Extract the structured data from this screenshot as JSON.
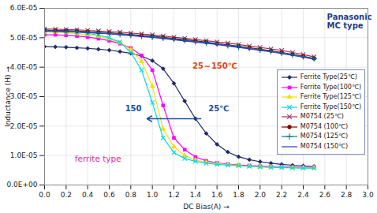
{
  "chart_data": {
    "type": "line",
    "x_label": "DC Bias(A)",
    "y_label": "Inductance (H)",
    "x": [
      0.0,
      0.1,
      0.2,
      0.3,
      0.4,
      0.5,
      0.6,
      0.7,
      0.8,
      0.9,
      1.0,
      1.1,
      1.2,
      1.3,
      1.4,
      1.5,
      1.6,
      1.7,
      1.8,
      1.9,
      2.0,
      2.1,
      2.2,
      2.3,
      2.4,
      2.5
    ],
    "series": [
      {
        "name": "Ferrite Type(25℃)",
        "color": "#1f2a6b",
        "marker": "diamond",
        "line_style": "solid",
        "values": [
          4.7e-05,
          4.69e-05,
          4.68e-05,
          4.66e-05,
          4.64e-05,
          4.61e-05,
          4.58e-05,
          4.53e-05,
          4.47e-05,
          4.38e-05,
          4.22e-05,
          3.95e-05,
          3.45e-05,
          2.85e-05,
          2.25e-05,
          1.75e-05,
          1.38e-05,
          1.12e-05,
          9.6e-06,
          8.6e-06,
          7.9e-06,
          7.4e-06,
          7e-06,
          6.7e-06,
          6.5e-06,
          6.3e-06
        ]
      },
      {
        "name": "Ferrite Type(100℃)",
        "color": "#ff00ff",
        "marker": "square",
        "line_style": "solid",
        "values": [
          5.1e-05,
          5.1e-05,
          5.08e-05,
          5.06e-05,
          5.02e-05,
          4.97e-05,
          4.9e-05,
          4.8e-05,
          4.65e-05,
          4.4e-05,
          3.9e-05,
          2.7e-05,
          1.6e-05,
          1.2e-05,
          9.5e-06,
          8.2e-06,
          7.5e-06,
          7.1e-06,
          6.8e-06,
          6.6e-06,
          6.4e-06,
          6.3e-06,
          6.2e-06,
          6.1e-06,
          6e-06,
          6e-06
        ]
      },
      {
        "name": "Ferrite Type(125℃)",
        "color": "#f0e000",
        "marker": "triangle",
        "line_style": "solid",
        "values": [
          5.2e-05,
          5.19e-05,
          5.17e-05,
          5.14e-05,
          5.1e-05,
          5.05e-05,
          4.96e-05,
          4.83e-05,
          4.6e-05,
          4.2e-05,
          3.35e-05,
          1.9e-05,
          1.3e-05,
          1e-05,
          8.5e-06,
          7.7e-06,
          7.2e-06,
          6.9e-06,
          6.6e-06,
          6.4e-06,
          6.2e-06,
          6.1e-06,
          6e-06,
          5.9e-06,
          5.8e-06,
          5.8e-06
        ]
      },
      {
        "name": "Ferrite Type(150℃)",
        "color": "#00d8f0",
        "marker": "x",
        "line_style": "solid",
        "values": [
          5.25e-05,
          5.24e-05,
          5.22e-05,
          5.19e-05,
          5.15e-05,
          5.09e-05,
          5e-05,
          4.85e-05,
          4.5e-05,
          3.9e-05,
          2.8e-05,
          1.6e-05,
          1.1e-05,
          9e-06,
          8e-06,
          7.4e-06,
          7e-06,
          6.7e-06,
          6.5e-06,
          6.3e-06,
          6.1e-06,
          6e-06,
          5.9e-06,
          5.8e-06,
          5.7e-06,
          5.7e-06
        ]
      },
      {
        "name": "M0754 (25℃)",
        "color": "#993366",
        "marker": "x",
        "line_style": "solid",
        "values": [
          5.3e-05,
          5.29e-05,
          5.28e-05,
          5.27e-05,
          5.25e-05,
          5.23e-05,
          5.21e-05,
          5.19e-05,
          5.16e-05,
          5.13e-05,
          5.1e-05,
          5.06e-05,
          5.02e-05,
          4.98e-05,
          4.94e-05,
          4.9e-05,
          4.86e-05,
          4.82e-05,
          4.77e-05,
          4.72e-05,
          4.67e-05,
          4.62e-05,
          4.57e-05,
          4.5e-05,
          4.43e-05,
          4.35e-05
        ]
      },
      {
        "name": "M0754 (100℃)",
        "color": "#800000",
        "marker": "circle",
        "line_style": "solid",
        "values": [
          5.26e-05,
          5.25e-05,
          5.24e-05,
          5.23e-05,
          5.21e-05,
          5.19e-05,
          5.17e-05,
          5.14e-05,
          5.11e-05,
          5.08e-05,
          5.05e-05,
          5.01e-05,
          4.97e-05,
          4.93e-05,
          4.89e-05,
          4.85e-05,
          4.8e-05,
          4.76e-05,
          4.71e-05,
          4.66e-05,
          4.61e-05,
          4.56e-05,
          4.5e-05,
          4.44e-05,
          4.37e-05,
          4.3e-05
        ]
      },
      {
        "name": "M0754 (125℃)",
        "color": "#008080",
        "marker": "plus",
        "line_style": "solid",
        "values": [
          5.24e-05,
          5.23e-05,
          5.22e-05,
          5.21e-05,
          5.19e-05,
          5.17e-05,
          5.15e-05,
          5.12e-05,
          5.09e-05,
          5.06e-05,
          5.03e-05,
          4.99e-05,
          4.95e-05,
          4.91e-05,
          4.87e-05,
          4.83e-05,
          4.79e-05,
          4.74e-05,
          4.69e-05,
          4.64e-05,
          4.59e-05,
          4.54e-05,
          4.48e-05,
          4.42e-05,
          4.36e-05,
          4.29e-05
        ]
      },
      {
        "name": "M0754 (150℃)",
        "color": "#3333cc",
        "marker": "none",
        "line_style": "solid",
        "values": [
          5.22e-05,
          5.21e-05,
          5.2e-05,
          5.19e-05,
          5.17e-05,
          5.15e-05,
          5.13e-05,
          5.1e-05,
          5.07e-05,
          5.04e-05,
          5.01e-05,
          4.97e-05,
          4.93e-05,
          4.89e-05,
          4.85e-05,
          4.81e-05,
          4.77e-05,
          4.72e-05,
          4.67e-05,
          4.62e-05,
          4.57e-05,
          4.52e-05,
          4.46e-05,
          4.4e-05,
          4.34e-05,
          4.27e-05
        ]
      }
    ],
    "xlim": [
      0.0,
      3.0
    ],
    "xticks": [
      {
        "value": 0.0,
        "label": "0.0"
      },
      {
        "value": 0.2,
        "label": "0.2"
      },
      {
        "value": 0.4,
        "label": "0.4"
      },
      {
        "value": 0.6,
        "label": "0.6"
      },
      {
        "value": 0.8,
        "label": "0.8"
      },
      {
        "value": 1.0,
        "label": "1.0"
      },
      {
        "value": 1.2,
        "label": "1.2"
      },
      {
        "value": 1.4,
        "label": "1.4"
      },
      {
        "value": 1.6,
        "label": "1.6"
      },
      {
        "value": 1.8,
        "label": "1.8"
      },
      {
        "value": 2.0,
        "label": "2.0"
      },
      {
        "value": 2.2,
        "label": "2.2"
      },
      {
        "value": 2.4,
        "label": "2.4"
      },
      {
        "value": 2.6,
        "label": "2.6"
      },
      {
        "value": 2.8,
        "label": "2.8"
      },
      {
        "value": 3.0,
        "label": "3.0"
      }
    ],
    "ylim": [
      0,
      6e-05
    ],
    "yticks": [
      {
        "value": 0,
        "label": "0.0E+00"
      },
      {
        "value": 1e-05,
        "label": "1.0E-05"
      },
      {
        "value": 2e-05,
        "label": "2.0E-05"
      },
      {
        "value": 3e-05,
        "label": "3.0E-05"
      },
      {
        "value": 4e-05,
        "label": "4.0E-05"
      },
      {
        "value": 5e-05,
        "label": "5.0E-05"
      },
      {
        "value": 6e-05,
        "label": "6.0E-05"
      }
    ],
    "grid": true,
    "legend": "right",
    "annotations": [
      {
        "text": "Panasonic\nMC type",
        "color": "#1f3c88"
      },
      {
        "text": "25～150℃",
        "color": "#e8400c"
      },
      {
        "text": "150",
        "color": "#2050a0"
      },
      {
        "text": "25℃",
        "color": "#2050a0"
      },
      {
        "text": "ferrite type",
        "color": "#e030a0"
      }
    ]
  }
}
